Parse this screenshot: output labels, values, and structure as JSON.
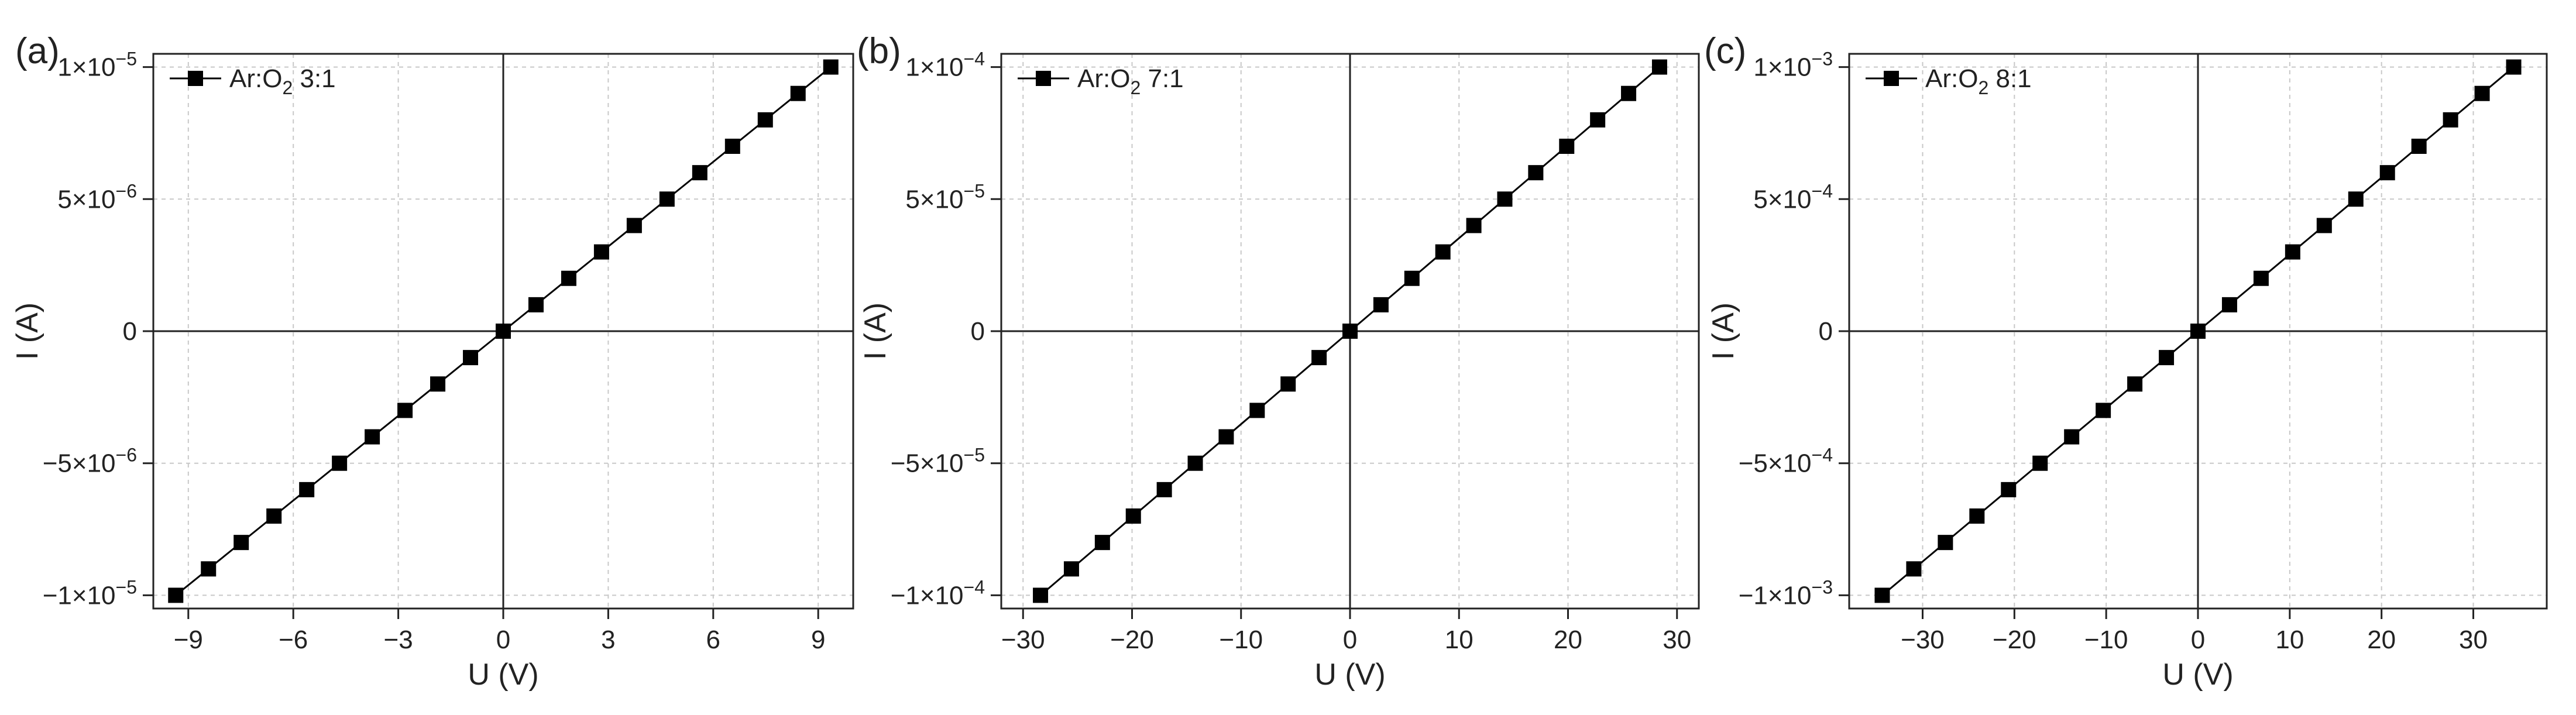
{
  "chart_data": [
    {
      "type": "line",
      "panel_label": "(a)",
      "xlabel": "U (V)",
      "ylabel": "I (A)",
      "xlim": [
        -10,
        10
      ],
      "ylim": [
        -1.05e-05,
        1.05e-05
      ],
      "xticks": [
        -9,
        -6,
        -3,
        0,
        3,
        6,
        9
      ],
      "xtick_labels": [
        "−9",
        "−6",
        "−3",
        "0",
        "3",
        "6",
        "9"
      ],
      "yticks": [
        -1e-05,
        -5e-06,
        0,
        5e-06,
        1e-05
      ],
      "ytick_labels": [
        {
          "m": "−1×10",
          "e": "−5"
        },
        {
          "m": "−5×10",
          "e": "−6"
        },
        {
          "m": "0",
          "e": ""
        },
        {
          "m": "5×10",
          "e": "−6"
        },
        {
          "m": "1×10",
          "e": "−5"
        }
      ],
      "grid": true,
      "legend_position": "top-left",
      "series": [
        {
          "name": {
            "pre": "Ar:O",
            "sub": "2",
            "post": " 3:1"
          },
          "color": "#000000",
          "marker": "square",
          "x": [
            -9.36,
            -8.424,
            -7.488,
            -6.552,
            -5.616,
            -4.68,
            -3.744,
            -2.808,
            -1.872,
            -0.936,
            0,
            0.936,
            1.872,
            2.808,
            3.744,
            4.68,
            5.616,
            6.552,
            7.488,
            8.424,
            9.36
          ],
          "y": [
            -1e-05,
            -9e-06,
            -8e-06,
            -7e-06,
            -6e-06,
            -5e-06,
            -4e-06,
            -3e-06,
            -2e-06,
            -1e-06,
            0,
            1e-06,
            2e-06,
            3e-06,
            4e-06,
            5e-06,
            6e-06,
            7e-06,
            8e-06,
            9e-06,
            1e-05
          ]
        }
      ]
    },
    {
      "type": "line",
      "panel_label": "(b)",
      "xlabel": "U (V)",
      "ylabel": "I (A)",
      "xlim": [
        -32,
        32
      ],
      "ylim": [
        -0.000105,
        0.000105
      ],
      "xticks": [
        -30,
        -20,
        -10,
        0,
        10,
        20,
        30
      ],
      "xtick_labels": [
        "−30",
        "−20",
        "−10",
        "0",
        "10",
        "20",
        "30"
      ],
      "yticks": [
        -0.0001,
        -5e-05,
        0,
        5e-05,
        0.0001
      ],
      "ytick_labels": [
        {
          "m": "−1×10",
          "e": "−4"
        },
        {
          "m": "−5×10",
          "e": "−5"
        },
        {
          "m": "0",
          "e": ""
        },
        {
          "m": "5×10",
          "e": "−5"
        },
        {
          "m": "1×10",
          "e": "−4"
        }
      ],
      "grid": true,
      "legend_position": "top-left",
      "series": [
        {
          "name": {
            "pre": "Ar:O",
            "sub": "2",
            "post": " 7:1"
          },
          "color": "#000000",
          "marker": "square",
          "x": [
            -28.4,
            -25.56,
            -22.72,
            -19.88,
            -17.04,
            -14.2,
            -11.36,
            -8.52,
            -5.68,
            -2.84,
            0,
            2.84,
            5.68,
            8.52,
            11.36,
            14.2,
            17.04,
            19.88,
            22.72,
            25.56,
            28.4
          ],
          "y": [
            -0.0001,
            -9e-05,
            -8e-05,
            -7e-05,
            -6e-05,
            -5e-05,
            -4e-05,
            -3e-05,
            -2e-05,
            -1e-05,
            0,
            1e-05,
            2e-05,
            3e-05,
            4e-05,
            5e-05,
            6e-05,
            7e-05,
            8e-05,
            9e-05,
            0.0001
          ]
        }
      ]
    },
    {
      "type": "line",
      "panel_label": "(c)",
      "xlabel": "U (V)",
      "ylabel": "I (A)",
      "xlim": [
        -38,
        38
      ],
      "ylim": [
        -0.00105,
        0.00105
      ],
      "xticks": [
        -30,
        -20,
        -10,
        0,
        10,
        20,
        30
      ],
      "xtick_labels": [
        "−30",
        "−20",
        "−10",
        "0",
        "10",
        "20",
        "30"
      ],
      "yticks": [
        -0.001,
        -0.0005,
        0,
        0.0005,
        0.001
      ],
      "ytick_labels": [
        {
          "m": "−1×10",
          "e": "−3"
        },
        {
          "m": "−5×10",
          "e": "−4"
        },
        {
          "m": "0",
          "e": ""
        },
        {
          "m": "5×10",
          "e": "−4"
        },
        {
          "m": "1×10",
          "e": "−3"
        }
      ],
      "grid": true,
      "legend_position": "top-left",
      "series": [
        {
          "name": {
            "pre": "Ar:O",
            "sub": "2",
            "post": " 8:1"
          },
          "color": "#000000",
          "marker": "square",
          "x": [
            -34.4,
            -30.96,
            -27.52,
            -24.08,
            -20.64,
            -17.2,
            -13.76,
            -10.32,
            -6.88,
            -3.44,
            0,
            3.44,
            6.88,
            10.32,
            13.76,
            17.2,
            20.64,
            24.08,
            27.52,
            30.96,
            34.4
          ],
          "y": [
            -0.001,
            -0.0009,
            -0.0008,
            -0.0007,
            -0.0006,
            -0.0005,
            -0.0004,
            -0.0003,
            -0.0002,
            -0.0001,
            0,
            0.0001,
            0.0002,
            0.0003,
            0.0004,
            0.0005,
            0.0006,
            0.0007,
            0.0008,
            0.0009,
            0.001
          ]
        }
      ]
    }
  ]
}
